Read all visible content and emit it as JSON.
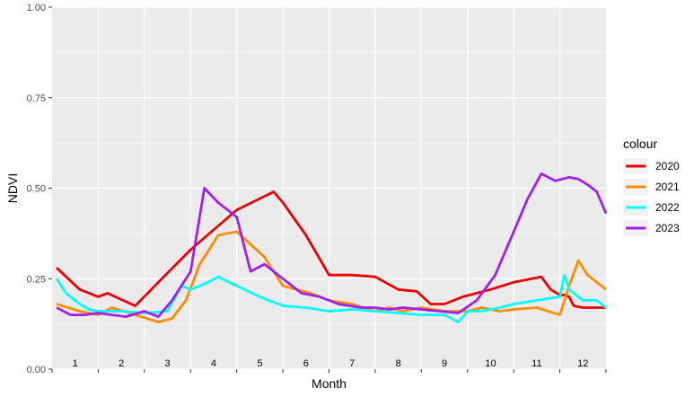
{
  "chart_data": {
    "type": "line",
    "xlabel": "Month",
    "ylabel": "NDVI",
    "ylim": [
      0,
      1
    ],
    "xlim": [
      0,
      12
    ],
    "y_ticks": [
      {
        "value": 0,
        "label": "0.00"
      },
      {
        "value": 0.25,
        "label": "0.25"
      },
      {
        "value": 0.5,
        "label": "0.50"
      },
      {
        "value": 0.75,
        "label": "0.75"
      },
      {
        "value": 1,
        "label": "1.00"
      }
    ],
    "x_month_labels": [
      "1",
      "2",
      "3",
      "4",
      "5",
      "6",
      "7",
      "8",
      "9",
      "10",
      "11",
      "12"
    ],
    "grid": true,
    "panel_background": "#ebebeb",
    "grid_color": "#ffffff",
    "legend": {
      "title": "colour",
      "position": "right"
    },
    "series": [
      {
        "name": "2020",
        "color": "#ee0000",
        "x": [
          0.1,
          0.6,
          1.0,
          1.2,
          1.8,
          2.3,
          3.0,
          4.0,
          4.8,
          5.0,
          5.5,
          6.0,
          6.5,
          7.0,
          7.5,
          7.9,
          8.2,
          8.5,
          8.9,
          9.5,
          10.0,
          10.6,
          10.8,
          11.0,
          11.1,
          11.2,
          11.3,
          11.5,
          12.0
        ],
        "y": [
          0.28,
          0.22,
          0.2,
          0.21,
          0.175,
          0.24,
          0.33,
          0.44,
          0.49,
          0.46,
          0.37,
          0.26,
          0.26,
          0.255,
          0.22,
          0.215,
          0.18,
          0.18,
          0.2,
          0.22,
          0.24,
          0.255,
          0.22,
          0.205,
          0.205,
          0.2,
          0.175,
          0.17,
          0.17
        ]
      },
      {
        "name": "2021",
        "color": "#ff8c00",
        "x": [
          0.1,
          0.6,
          1.0,
          1.3,
          1.8,
          2.3,
          2.6,
          2.9,
          3.2,
          3.6,
          4.0,
          4.6,
          5.0,
          5.6,
          6.0,
          6.5,
          7.0,
          7.3,
          7.6,
          8.0,
          8.5,
          9.0,
          9.3,
          9.7,
          10.0,
          10.5,
          11.0,
          11.2,
          11.4,
          11.6,
          12.0
        ],
        "y": [
          0.18,
          0.16,
          0.15,
          0.17,
          0.15,
          0.13,
          0.14,
          0.19,
          0.29,
          0.37,
          0.38,
          0.31,
          0.23,
          0.21,
          0.19,
          0.18,
          0.16,
          0.17,
          0.16,
          0.17,
          0.16,
          0.16,
          0.17,
          0.16,
          0.165,
          0.17,
          0.15,
          0.23,
          0.3,
          0.26,
          0.22
        ]
      },
      {
        "name": "2022",
        "color": "#00ffff",
        "x": [
          0.1,
          0.3,
          0.6,
          0.8,
          1.0,
          1.5,
          2.0,
          2.5,
          2.8,
          3.0,
          3.3,
          3.6,
          4.0,
          4.5,
          5.0,
          5.5,
          6.0,
          6.5,
          7.0,
          7.5,
          8.0,
          8.5,
          8.8,
          9.0,
          9.3,
          9.7,
          10.0,
          10.5,
          11.0,
          11.1,
          11.2,
          11.3,
          11.5,
          11.8,
          12.0
        ],
        "y": [
          0.25,
          0.21,
          0.18,
          0.165,
          0.16,
          0.16,
          0.155,
          0.16,
          0.23,
          0.22,
          0.235,
          0.255,
          0.23,
          0.2,
          0.175,
          0.17,
          0.16,
          0.165,
          0.16,
          0.155,
          0.15,
          0.15,
          0.13,
          0.16,
          0.16,
          0.17,
          0.18,
          0.19,
          0.2,
          0.26,
          0.22,
          0.21,
          0.19,
          0.19,
          0.17
        ]
      },
      {
        "name": "2023",
        "color": "#a020f0",
        "x": [
          0.1,
          0.4,
          0.7,
          1.0,
          1.3,
          1.6,
          2.0,
          2.3,
          2.6,
          3.0,
          3.3,
          3.6,
          4.0,
          4.3,
          4.6,
          5.0,
          5.4,
          5.8,
          6.2,
          6.7,
          7.0,
          7.3,
          7.6,
          8.0,
          8.4,
          8.8,
          9.2,
          9.6,
          10.0,
          10.3,
          10.6,
          10.9,
          11.2,
          11.4,
          11.6,
          11.8,
          12.0
        ],
        "y": [
          0.17,
          0.15,
          0.15,
          0.155,
          0.15,
          0.145,
          0.16,
          0.145,
          0.19,
          0.27,
          0.5,
          0.46,
          0.42,
          0.27,
          0.29,
          0.25,
          0.21,
          0.2,
          0.18,
          0.17,
          0.17,
          0.165,
          0.17,
          0.165,
          0.16,
          0.155,
          0.19,
          0.26,
          0.38,
          0.47,
          0.54,
          0.52,
          0.53,
          0.525,
          0.51,
          0.49,
          0.43
        ]
      }
    ]
  }
}
